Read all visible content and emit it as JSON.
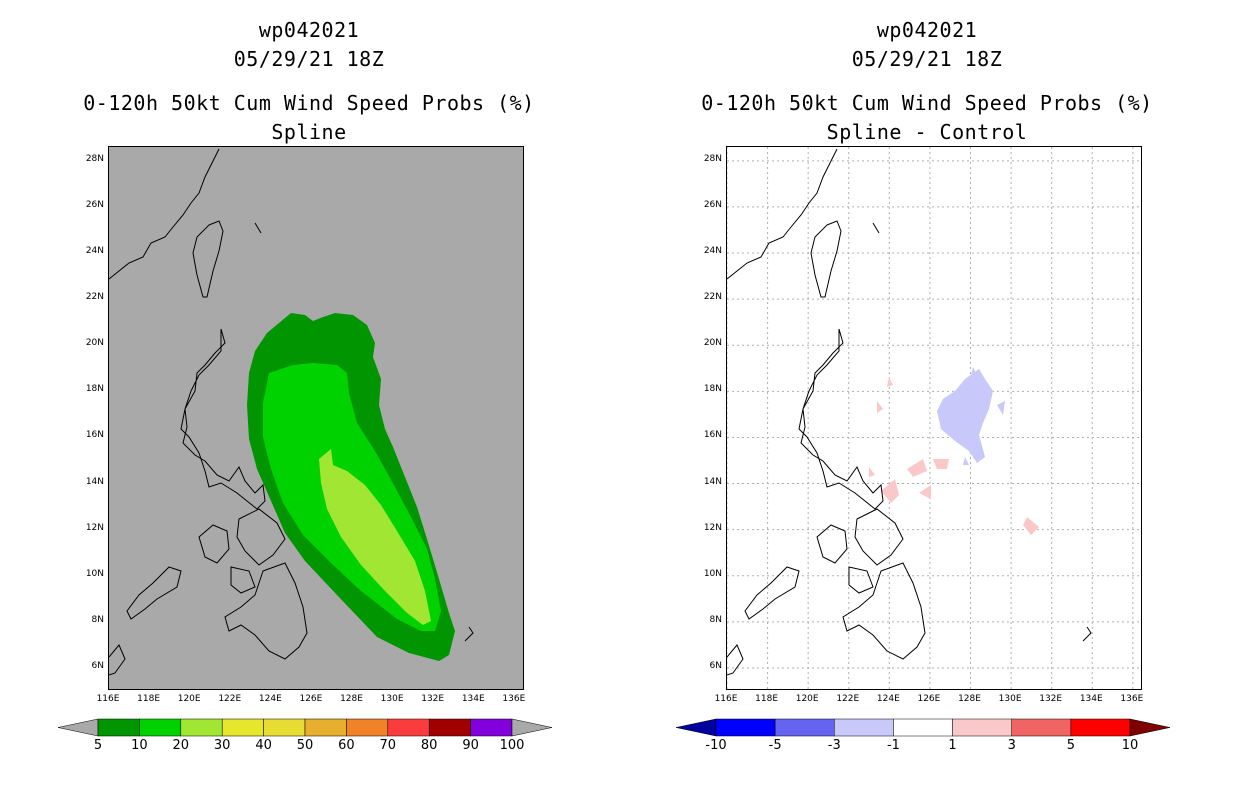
{
  "left_panel": {
    "title_id": "wp042021",
    "title_time": "05/29/21 18Z",
    "title_product": "0-120h 50kt Cum Wind Speed Probs (%)",
    "title_method": "Spline",
    "background_color": "#a9a9a9",
    "colorbar": {
      "labels": [
        "5",
        "10",
        "20",
        "30",
        "40",
        "50",
        "60",
        "70",
        "80",
        "90",
        "100"
      ],
      "colors": [
        "#019601",
        "#00d200",
        "#a0e632",
        "#e6e62c",
        "#e6dc32",
        "#e6af2d",
        "#f08228",
        "#fa3c3c",
        "#a00000",
        "#8200dc"
      ],
      "below_color": "#a9a9a9",
      "above_color": "#a9a9a9"
    }
  },
  "right_panel": {
    "title_id": "wp042021",
    "title_time": "05/29/21 18Z",
    "title_product": "0-120h 50kt Cum Wind Speed Probs (%)",
    "title_method": "Spline - Control",
    "background_color": "#ffffff",
    "colorbar": {
      "labels": [
        "-10",
        "-5",
        "-3",
        "-1",
        "1",
        "3",
        "5",
        "10"
      ],
      "colors": [
        "#0000ff",
        "#6464f0",
        "#c8c8fa",
        "#ffffff",
        "#fac8c8",
        "#f06464",
        "#ff0000"
      ],
      "below_color": "#00009f",
      "above_color": "#7f0000"
    }
  },
  "axes": {
    "lat_labels": [
      "28N",
      "26N",
      "24N",
      "22N",
      "20N",
      "18N",
      "16N",
      "14N",
      "12N",
      "10N",
      "8N",
      "6N"
    ],
    "lon_labels": [
      "116E",
      "118E",
      "120E",
      "122E",
      "124E",
      "126E",
      "128E",
      "130E",
      "132E",
      "134E",
      "136E"
    ],
    "lat_range": [
      5.0,
      28.6
    ],
    "lon_range": [
      116.0,
      136.5
    ]
  },
  "map_data": {
    "prob_contours": [
      {
        "level": "5-10",
        "color": "#019601"
      },
      {
        "level": "10-20",
        "color": "#00d200"
      },
      {
        "level": "20-30",
        "color": "#a0e632"
      }
    ],
    "diff_areas": [
      {
        "sign": "negative",
        "range": "-3 to -1",
        "color": "#c8c8fa"
      },
      {
        "sign": "positive",
        "range": "1 to 3",
        "color": "#fac8c8"
      }
    ]
  }
}
